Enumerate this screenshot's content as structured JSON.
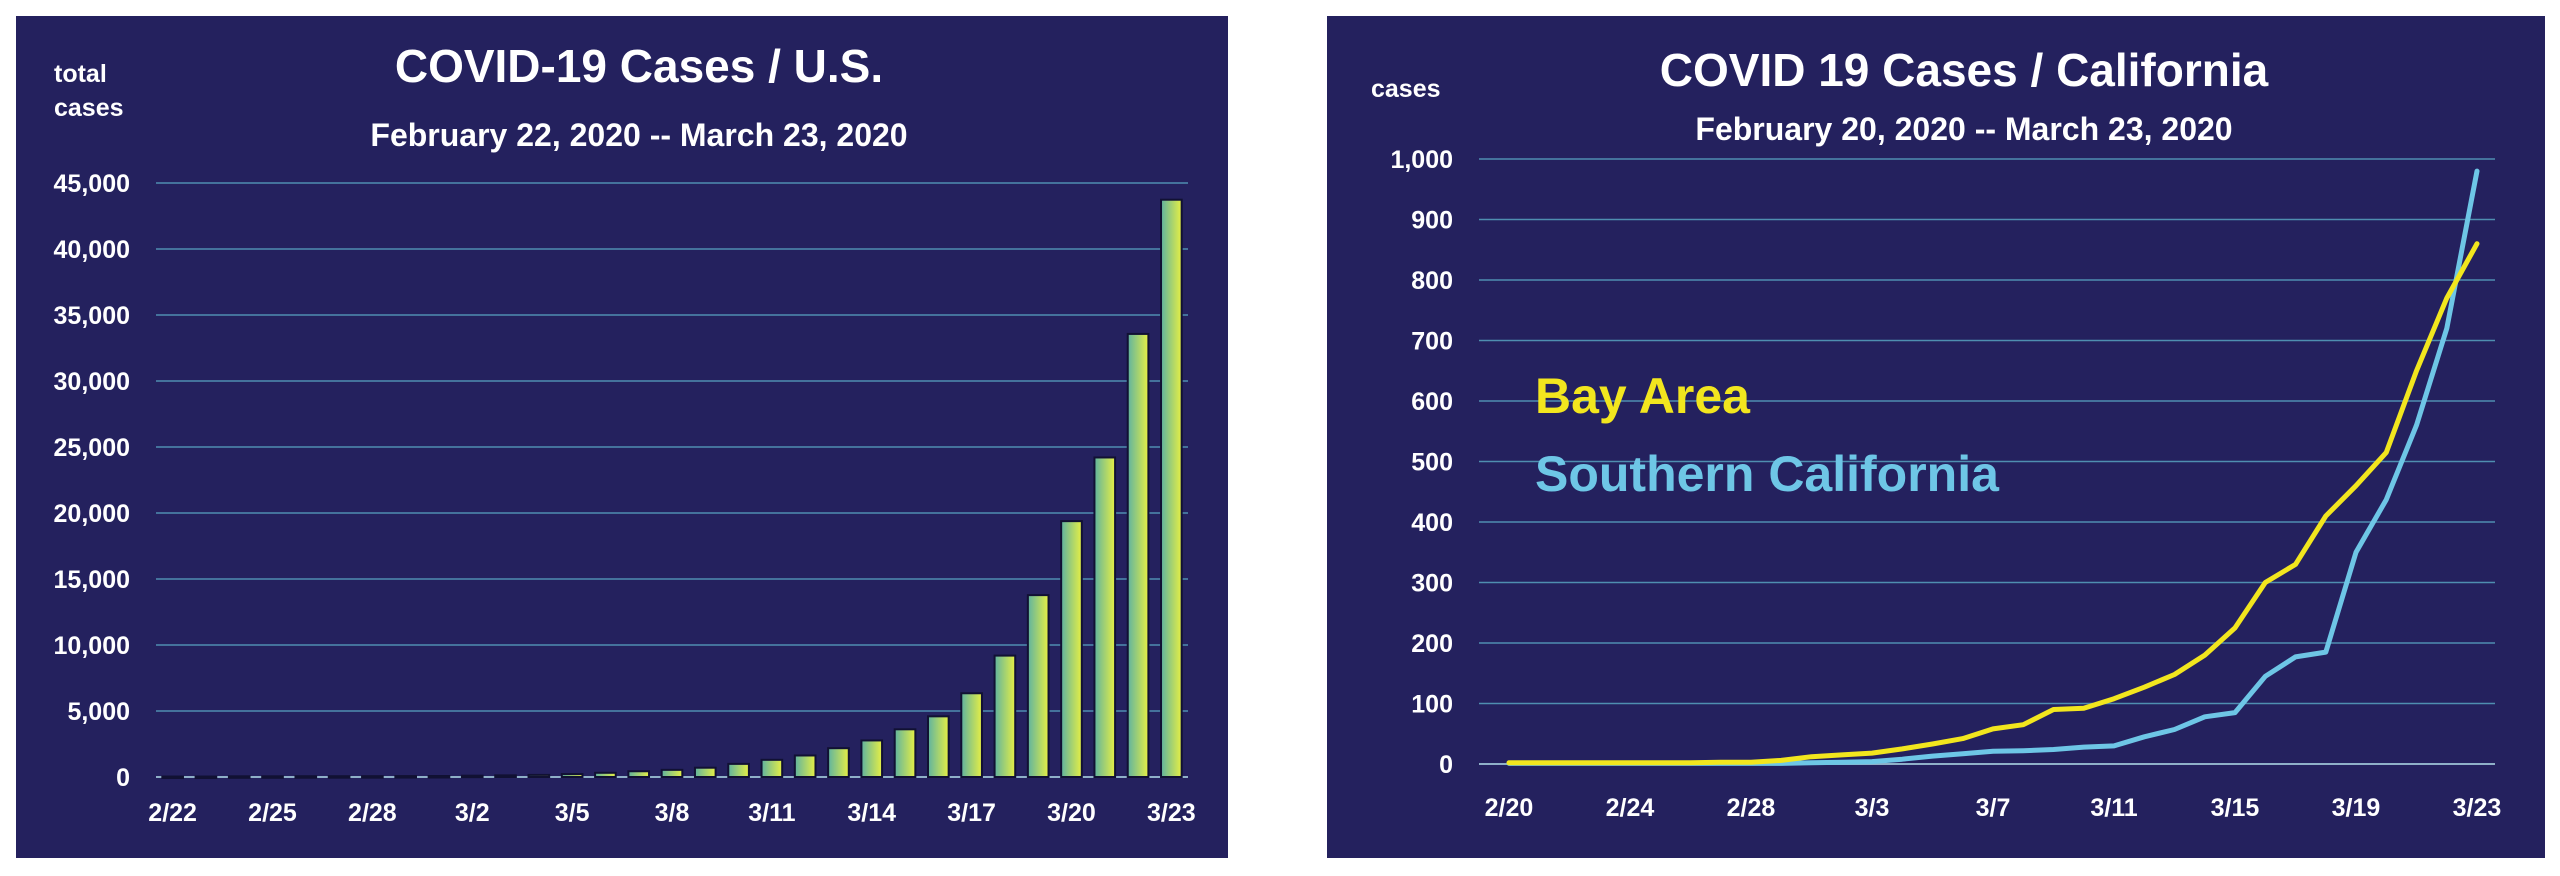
{
  "colors": {
    "background": "#24215e",
    "gridline": "#4f8eb0",
    "bar_gradient": [
      "#5fb3a0",
      "#e6ef44"
    ],
    "bay_area": "#f2e61e",
    "southern_california": "#6ec6e6"
  },
  "chart_data": [
    {
      "type": "bar",
      "title": "COVID-19 Cases / U.S.",
      "subtitle": "February 22, 2020 -- March 23, 2020",
      "ylabel_lines": [
        "total",
        "cases"
      ],
      "xlabel": "",
      "ylim": [
        0,
        45000
      ],
      "yticks": [
        0,
        5000,
        10000,
        15000,
        20000,
        25000,
        30000,
        35000,
        40000,
        45000
      ],
      "ytick_labels": [
        "0",
        "5,000",
        "10,000",
        "15,000",
        "20,000",
        "25,000",
        "30,000",
        "35,000",
        "40,000",
        "45,000"
      ],
      "grid": true,
      "categories": [
        "2/22",
        "2/23",
        "2/24",
        "2/25",
        "2/26",
        "2/27",
        "2/28",
        "2/29",
        "3/1",
        "3/2",
        "3/3",
        "3/4",
        "3/5",
        "3/6",
        "3/7",
        "3/8",
        "3/9",
        "3/10",
        "3/11",
        "3/12",
        "3/13",
        "3/14",
        "3/15",
        "3/16",
        "3/17",
        "3/18",
        "3/19",
        "3/20",
        "3/21",
        "3/22",
        "3/23"
      ],
      "xtick_labels": [
        "2/22",
        "2/25",
        "2/28",
        "3/2",
        "3/5",
        "3/8",
        "3/11",
        "3/14",
        "3/17",
        "3/20",
        "3/23"
      ],
      "xtick_positions": [
        0,
        3,
        6,
        9,
        12,
        15,
        18,
        21,
        24,
        27,
        30
      ],
      "values": [
        35,
        35,
        53,
        53,
        59,
        60,
        62,
        70,
        75,
        100,
        124,
        158,
        221,
        319,
        435,
        541,
        704,
        994,
        1301,
        1630,
        2183,
        2770,
        3613,
        4596,
        6344,
        9197,
        13779,
        19383,
        24207,
        33566,
        43734
      ]
    },
    {
      "type": "line",
      "title": "COVID 19 Cases / California",
      "subtitle": "February 20, 2020 -- March 23, 2020",
      "ylabel": "cases",
      "xlabel": "",
      "ylim": [
        0,
        1000
      ],
      "yticks": [
        0,
        100,
        200,
        300,
        400,
        500,
        600,
        700,
        800,
        900,
        1000
      ],
      "ytick_labels": [
        "0",
        "100",
        "200",
        "300",
        "400",
        "500",
        "600",
        "700",
        "800",
        "900",
        "1,000"
      ],
      "grid": true,
      "legend_position": "upper-left",
      "x": [
        "2/20",
        "2/21",
        "2/22",
        "2/23",
        "2/24",
        "2/25",
        "2/26",
        "2/27",
        "2/28",
        "2/29",
        "3/1",
        "3/2",
        "3/3",
        "3/4",
        "3/5",
        "3/6",
        "3/7",
        "3/8",
        "3/9",
        "3/10",
        "3/11",
        "3/12",
        "3/13",
        "3/14",
        "3/15",
        "3/16",
        "3/17",
        "3/18",
        "3/19",
        "3/20",
        "3/21",
        "3/22",
        "3/23"
      ],
      "xtick_labels": [
        "2/20",
        "2/24",
        "2/28",
        "3/3",
        "3/7",
        "3/11",
        "3/15",
        "3/19",
        "3/23"
      ],
      "xtick_positions": [
        0,
        4,
        8,
        12,
        16,
        20,
        24,
        28,
        32
      ],
      "series": [
        {
          "name": "Bay Area",
          "color": "#f2e61e",
          "values": [
            2,
            2,
            2,
            2,
            2,
            2,
            2,
            3,
            3,
            6,
            12,
            15,
            18,
            25,
            33,
            42,
            58,
            65,
            90,
            92,
            108,
            127,
            148,
            180,
            225,
            300,
            330,
            410,
            460,
            515,
            650,
            770,
            860
          ]
        },
        {
          "name": "Southern California",
          "color": "#6ec6e6",
          "values": [
            1,
            1,
            1,
            1,
            1,
            1,
            1,
            1,
            1,
            1,
            2,
            3,
            4,
            8,
            13,
            17,
            21,
            22,
            24,
            28,
            30,
            45,
            57,
            78,
            85,
            145,
            177,
            185,
            350,
            437,
            560,
            720,
            980
          ]
        }
      ]
    }
  ]
}
